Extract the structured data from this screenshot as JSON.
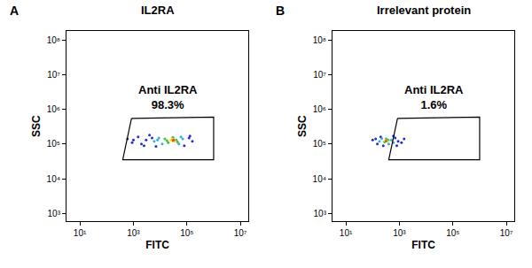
{
  "chart_data": [
    {
      "type": "scatter",
      "panel": "A",
      "title": "IL2RA",
      "x_label": "FITC",
      "y_label": "SSC",
      "log": true,
      "xlim": [
        3.16,
        20000000
      ],
      "ylim": [
        600,
        180000000
      ],
      "xticks": [
        {
          "value": 10,
          "label": "10¹"
        },
        {
          "value": 1000,
          "label": "10³"
        },
        {
          "value": 100000,
          "label": "10⁵"
        },
        {
          "value": 10000000,
          "label": "10⁷"
        }
      ],
      "yticks": [
        {
          "value": 1000,
          "label": "10³"
        },
        {
          "value": 10000,
          "label": "10⁴"
        },
        {
          "value": 100000,
          "label": "10⁵"
        },
        {
          "value": 1000000,
          "label": "10⁶"
        },
        {
          "value": 10000000,
          "label": "10⁷"
        },
        {
          "value": 100000000,
          "label": "10⁸"
        }
      ],
      "gate": {
        "x": [
          850,
          1000000,
          1000000,
          400
        ],
        "y": [
          550000,
          600000,
          35000,
          35000
        ]
      },
      "gate_label": "Anti IL2RA",
      "gate_value": 98.3,
      "gate_value_label": "98.3%",
      "series": [
        {
          "color": "#2030d0",
          "x": [
            600,
            900,
            1500,
            2500,
            4000,
            7000,
            120000,
            160000,
            1000,
            3000,
            2000,
            80000,
            130000,
            5000
          ],
          "y": [
            140000,
            110000,
            160000,
            90000,
            180000,
            85000,
            150000,
            120000,
            130000,
            130000,
            100000,
            90000,
            170000,
            150000
          ]
        },
        {
          "color": "#30b0e0",
          "x": [
            6000,
            9000,
            12000,
            50000,
            70000,
            8000,
            60000
          ],
          "y": [
            120000,
            150000,
            100000,
            100000,
            140000,
            130000,
            160000
          ]
        },
        {
          "color": "#40c040",
          "x": [
            15000,
            20000,
            40000,
            30000,
            18000,
            45000
          ],
          "y": [
            140000,
            110000,
            130000,
            155000,
            125000,
            115000
          ]
        },
        {
          "color": "#f0e020",
          "x": [
            25000,
            35000,
            28000
          ],
          "y": [
            130000,
            120000,
            140000
          ]
        },
        {
          "color": "#f05020",
          "x": [
            30000,
            32000
          ],
          "y": [
            125000,
            133000
          ]
        }
      ]
    },
    {
      "type": "scatter",
      "panel": "B",
      "title": "Irrelevant protein",
      "x_label": "FITC",
      "y_label": "SSC",
      "log": true,
      "xlim": [
        3.16,
        20000000
      ],
      "ylim": [
        600,
        180000000
      ],
      "xticks": [
        {
          "value": 10,
          "label": "10¹"
        },
        {
          "value": 1000,
          "label": "10³"
        },
        {
          "value": 100000,
          "label": "10⁵"
        },
        {
          "value": 10000000,
          "label": "10⁷"
        }
      ],
      "yticks": [
        {
          "value": 1000,
          "label": "10³"
        },
        {
          "value": 10000,
          "label": "10⁴"
        },
        {
          "value": 100000,
          "label": "10⁵"
        },
        {
          "value": 1000000,
          "label": "10⁶"
        },
        {
          "value": 10000000,
          "label": "10⁷"
        },
        {
          "value": 100000000,
          "label": "10⁸"
        }
      ],
      "gate": {
        "x": [
          850,
          1000000,
          1000000,
          400
        ],
        "y": [
          550000,
          600000,
          35000,
          35000
        ]
      },
      "gate_label": "Anti IL2RA",
      "gate_value": 1.6,
      "gate_value_label": "1.6%",
      "series": [
        {
          "color": "#2030d0",
          "x": [
            100,
            150,
            200,
            700,
            900,
            130,
            800,
            250,
            600,
            1200,
            1500
          ],
          "y": [
            130000,
            100000,
            160000,
            150000,
            120000,
            140000,
            90000,
            90000,
            170000,
            110000,
            140000
          ]
        },
        {
          "color": "#30b0e0",
          "x": [
            180,
            500,
            400,
            220,
            600
          ],
          "y": [
            120000,
            130000,
            100000,
            145000,
            110000
          ]
        },
        {
          "color": "#40c040",
          "x": [
            280,
            380,
            320
          ],
          "y": [
            115000,
            130000,
            140000
          ]
        },
        {
          "color": "#f0e020",
          "x": [
            300,
            350
          ],
          "y": [
            125000,
            120000
          ]
        },
        {
          "color": "#f05020",
          "x": [
            320
          ],
          "y": [
            122000
          ]
        }
      ]
    }
  ]
}
